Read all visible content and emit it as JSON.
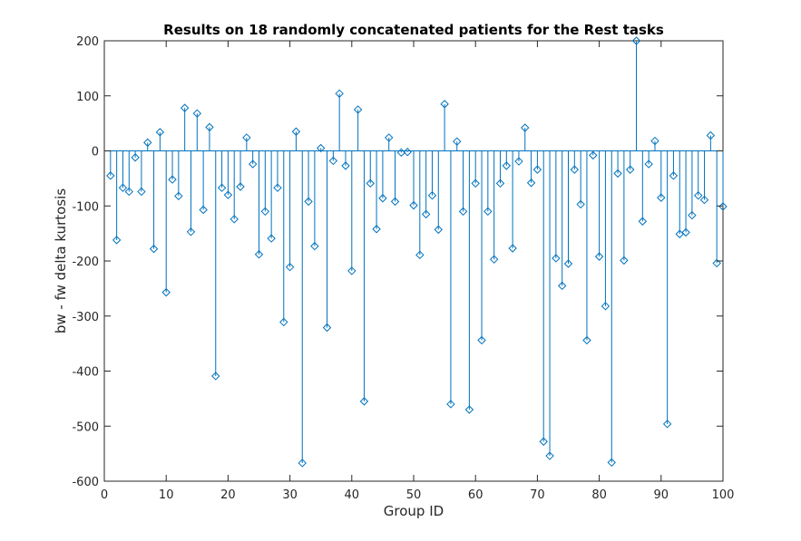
{
  "chart_data": {
    "type": "stem",
    "title": "Results on 18 randomly concatenated patients for the Rest tasks",
    "xlabel": "Group ID",
    "ylabel": "bw - fw delta kurtosis",
    "xlim": [
      0,
      100
    ],
    "ylim": [
      -600,
      200
    ],
    "xticks": [
      0,
      10,
      20,
      30,
      40,
      50,
      60,
      70,
      80,
      90,
      100
    ],
    "yticks": [
      -600,
      -500,
      -400,
      -300,
      -200,
      -100,
      0,
      100,
      200
    ],
    "grid": false,
    "series": [
      {
        "marker": "diamond",
        "color": "#0072BD",
        "x": [
          1,
          2,
          3,
          4,
          5,
          6,
          7,
          8,
          9,
          10,
          11,
          12,
          13,
          14,
          15,
          16,
          17,
          18,
          19,
          20,
          21,
          22,
          23,
          24,
          25,
          26,
          27,
          28,
          29,
          30,
          31,
          32,
          33,
          34,
          35,
          36,
          37,
          38,
          39,
          40,
          41,
          42,
          43,
          44,
          45,
          46,
          47,
          48,
          49,
          50,
          51,
          52,
          53,
          54,
          55,
          56,
          57,
          58,
          59,
          60,
          61,
          62,
          63,
          64,
          65,
          66,
          67,
          68,
          69,
          70,
          71,
          72,
          73,
          74,
          75,
          76,
          77,
          78,
          79,
          80,
          81,
          82,
          83,
          84,
          85,
          86,
          87,
          88,
          89,
          90,
          91,
          92,
          93,
          94,
          95,
          96,
          97,
          98,
          99,
          100
        ],
        "values": [
          -45,
          -162,
          -67,
          -74,
          -12,
          -74,
          15,
          -178,
          34,
          -257,
          -52,
          -82,
          78,
          -147,
          68,
          -107,
          43,
          -409,
          -67,
          -80,
          -124,
          -65,
          24,
          -24,
          -188,
          -110,
          -159,
          -67,
          -311,
          -211,
          35,
          -567,
          -92,
          -173,
          5,
          -321,
          -18,
          104,
          -27,
          -218,
          75,
          -455,
          -59,
          -142,
          -86,
          24,
          -92,
          -3,
          -2,
          -99,
          -189,
          -115,
          -81,
          -143,
          85,
          -460,
          17,
          -110,
          -470,
          -59,
          -344,
          -110,
          -197,
          -59,
          -27,
          -177,
          -19,
          42,
          -58,
          -34,
          -528,
          -554,
          -195,
          -245,
          -205,
          -34,
          -97,
          -344,
          -8,
          -192,
          -282,
          -566,
          -41,
          -199,
          -34,
          200,
          -128,
          -24,
          18,
          -85,
          -496,
          -45,
          -151,
          -148,
          -117,
          -81,
          -89,
          28,
          -204,
          -101
        ]
      }
    ]
  }
}
